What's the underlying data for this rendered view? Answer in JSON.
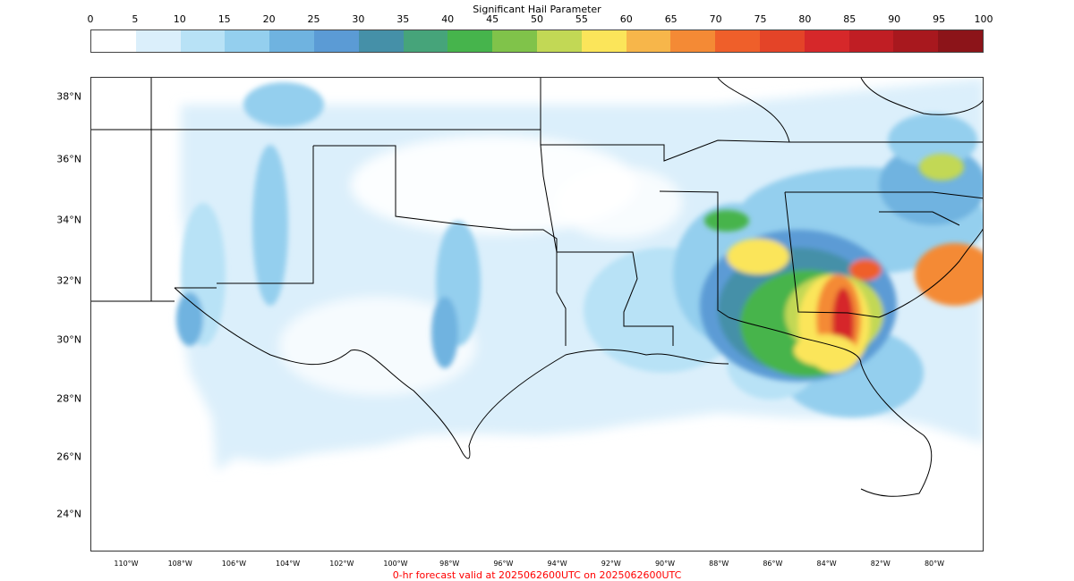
{
  "colorbar": {
    "title": "Significant Hail Parameter",
    "ticks": [
      "0",
      "5",
      "10",
      "15",
      "20",
      "25",
      "30",
      "35",
      "40",
      "45",
      "50",
      "55",
      "60",
      "65",
      "70",
      "75",
      "80",
      "85",
      "90",
      "95",
      "100"
    ],
    "colors": [
      "#ffffff",
      "#dbeffb",
      "#b8e2f6",
      "#94cfee",
      "#6fb3e0",
      "#5b9bd5",
      "#4590a8",
      "#46a47a",
      "#46b44c",
      "#80c34a",
      "#c2d855",
      "#fbe55a",
      "#f7b64a",
      "#f48a35",
      "#ef5f2a",
      "#e44428",
      "#d6282a",
      "#c01e24",
      "#a8181e",
      "#8c1419"
    ]
  },
  "map": {
    "lat_labels": [
      "38°N",
      "36°N",
      "34°N",
      "32°N",
      "30°N",
      "28°N",
      "26°N",
      "24°N"
    ],
    "lon_labels": [
      "110°W",
      "108°W",
      "106°W",
      "104°W",
      "102°W",
      "100°W",
      "98°W",
      "96°W",
      "94°W",
      "92°W",
      "90°W",
      "88°W",
      "86°W",
      "84°W",
      "82°W",
      "80°W"
    ]
  },
  "footer": "0-hr forecast valid at 2025062600UTC on 2025062600UTC"
}
